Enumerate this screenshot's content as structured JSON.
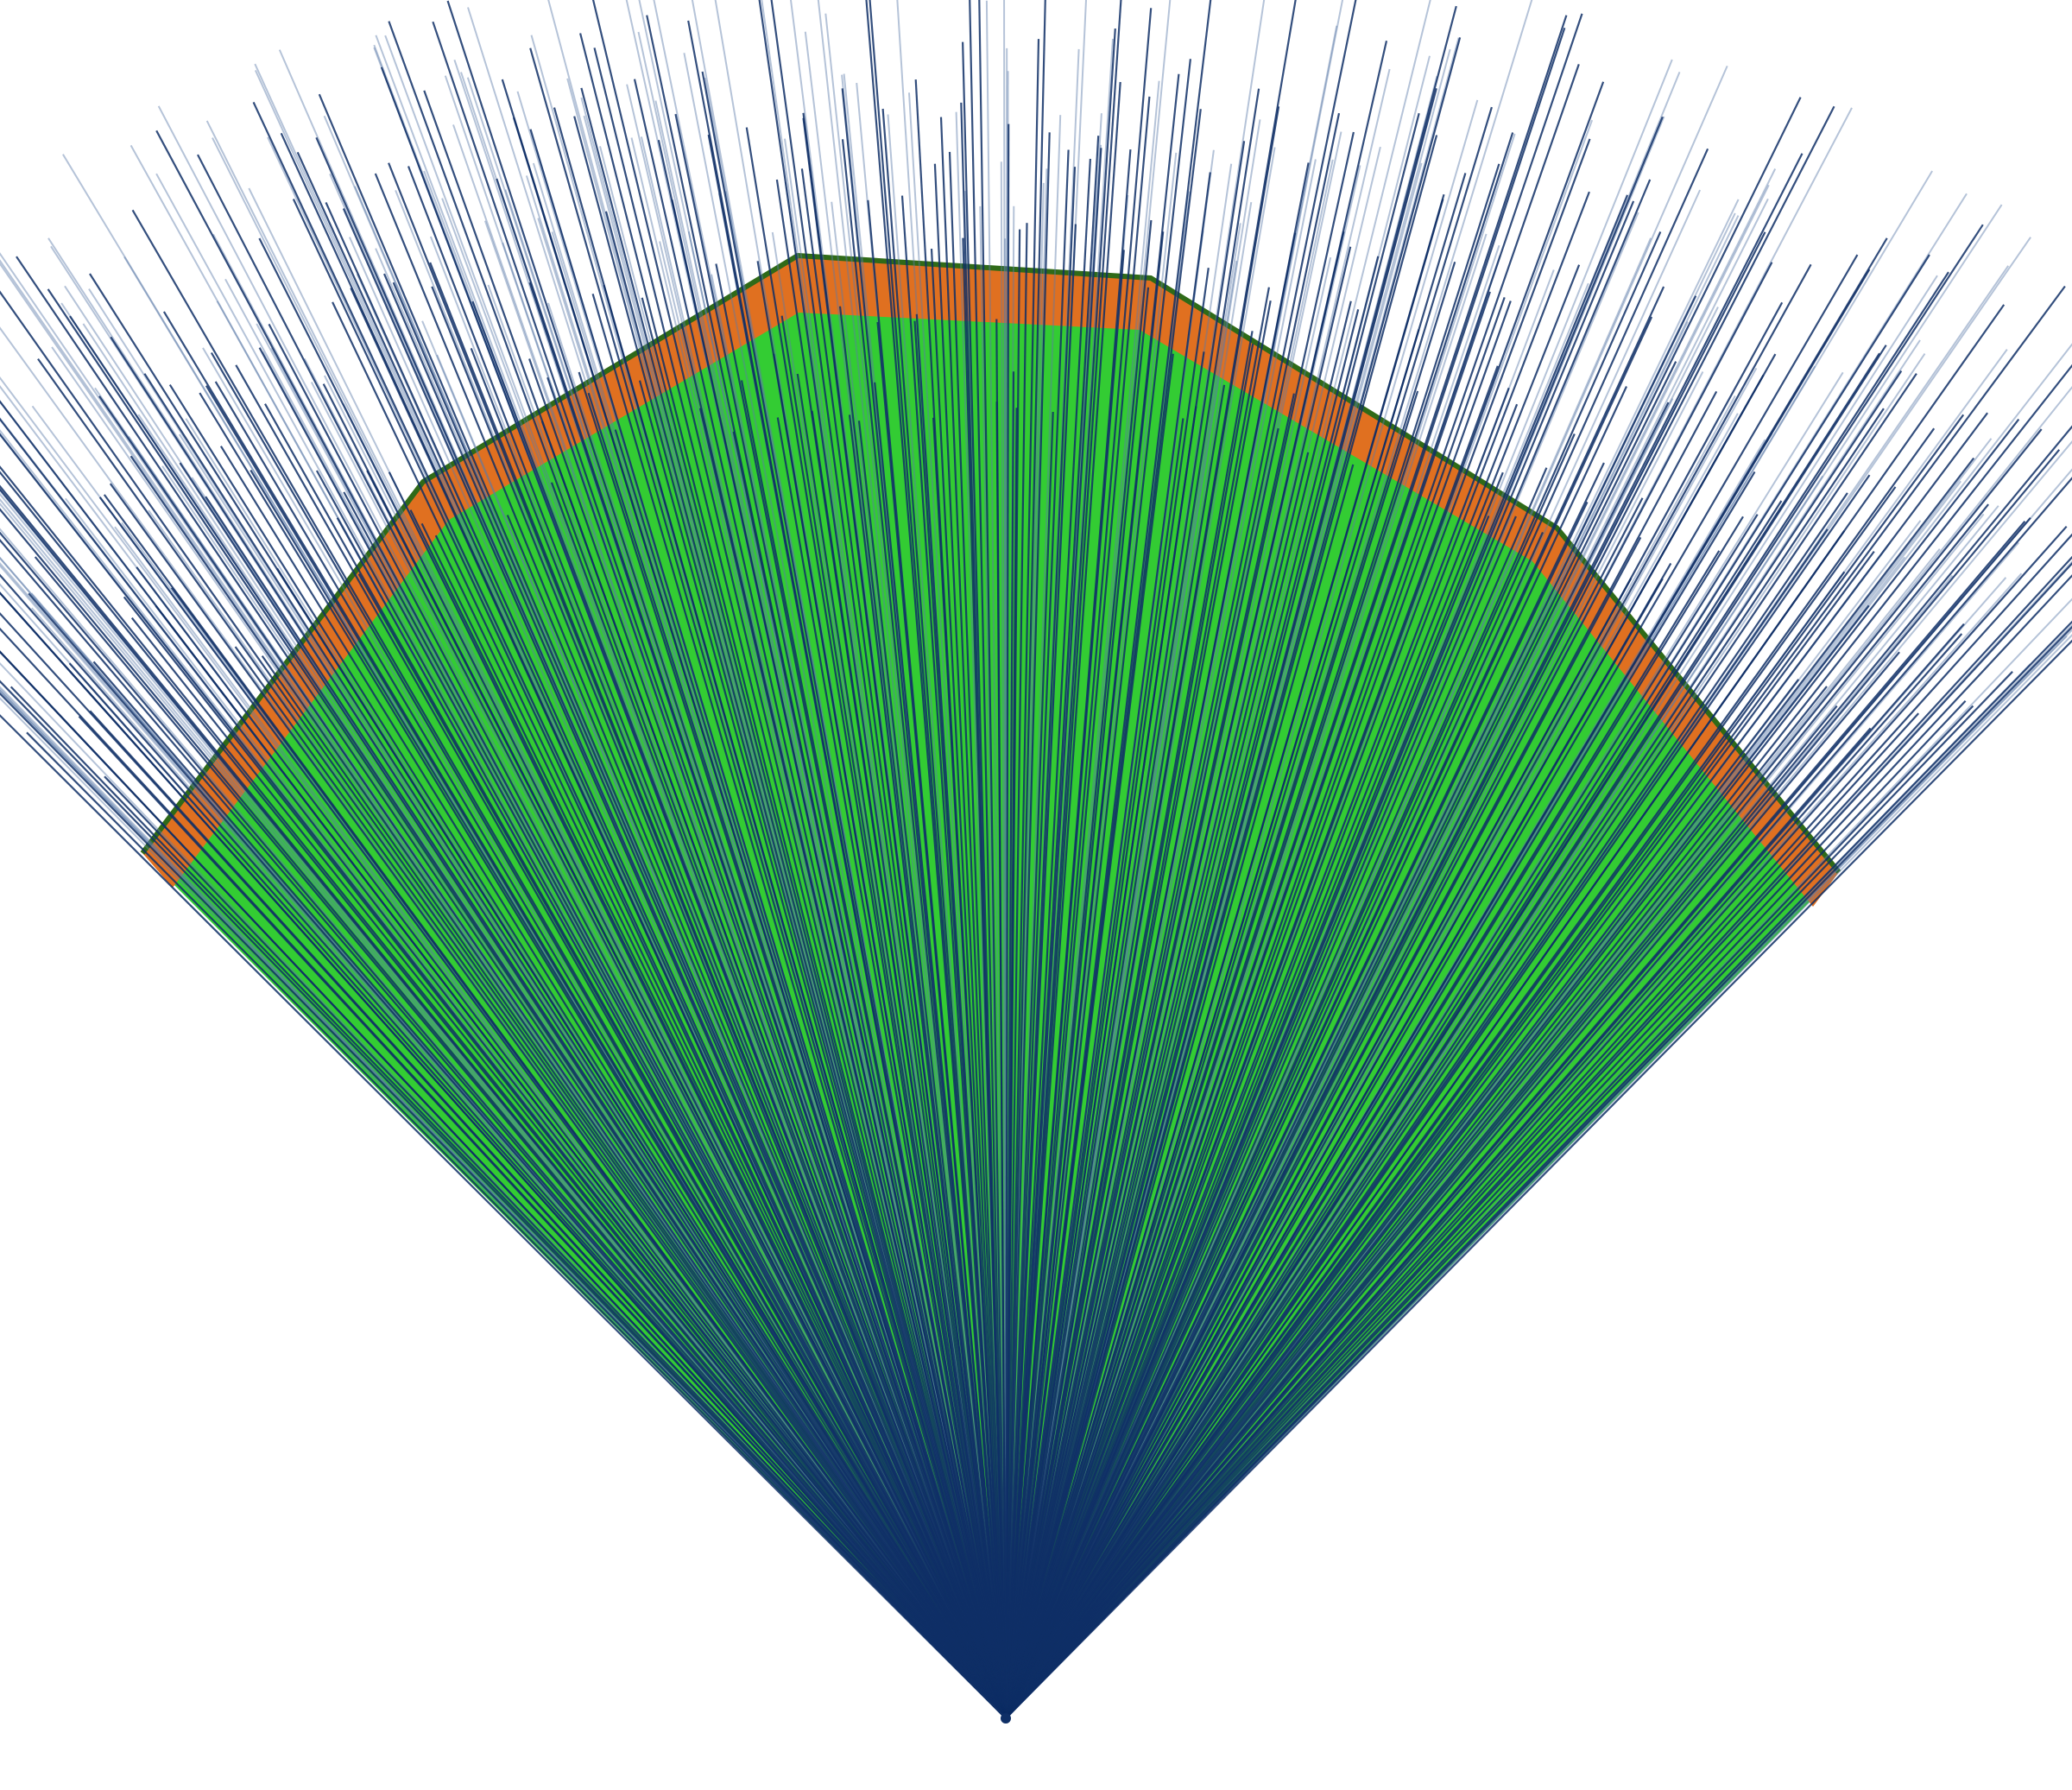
{
  "figure": {
    "text": [],
    "colors": {
      "background": "#ffffff",
      "fan_fill": "#33cc33",
      "boundary_band": "#e07020",
      "boundary_edge": "#2f6a18",
      "ray": "#0f2f66",
      "ray_light": "#5a7aa8"
    }
  }
}
